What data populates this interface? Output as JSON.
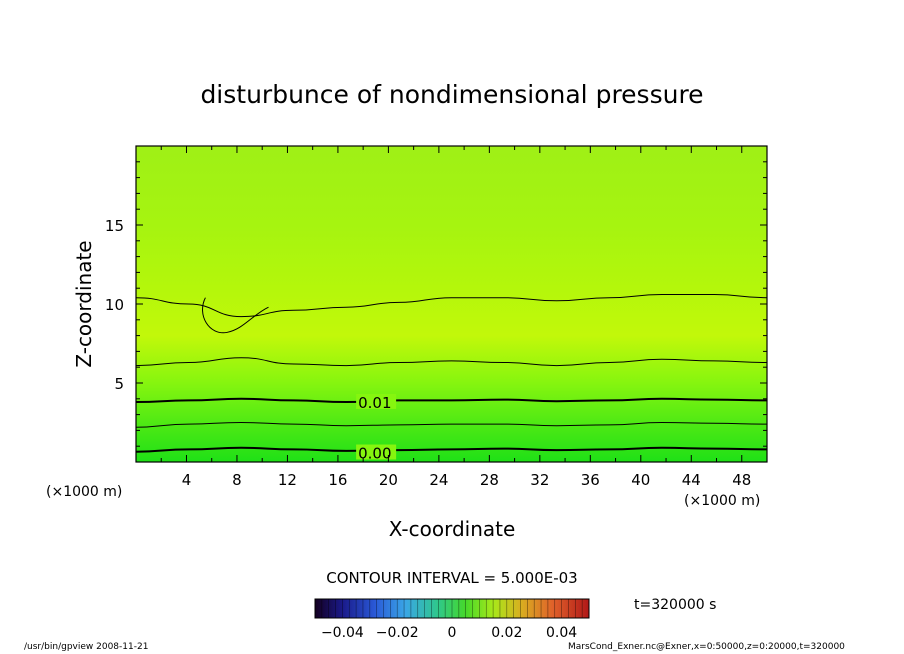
{
  "chart_data": {
    "type": "heatmap",
    "title": "disturbunce of nondimensional pressure",
    "xlabel": "X-coordinate",
    "ylabel": "Z-coordinate",
    "x_unit_left": "(×1000 m)",
    "x_unit_right": "(×1000 m)",
    "xlim": [
      0,
      50
    ],
    "ylim": [
      0,
      20
    ],
    "x_ticks": [
      4,
      8,
      12,
      16,
      20,
      24,
      28,
      32,
      36,
      40,
      44,
      48
    ],
    "y_ticks": [
      5,
      10,
      15
    ],
    "contour_interval": "CONTOUR INTERVAL = 5.000E-03",
    "contour_labels": [
      {
        "text": "0.01",
        "x": 17.6,
        "z": 3.8
      },
      {
        "text": "0.00",
        "x": 17.6,
        "z": 0.6
      }
    ],
    "contours": [
      {
        "level": 0.0,
        "z": [
          0.65,
          0.8,
          0.9,
          0.8,
          0.7,
          0.75,
          0.8,
          0.85,
          0.75,
          0.8,
          0.9,
          0.85,
          0.8
        ],
        "bold": true
      },
      {
        "level": 0.005,
        "z": [
          2.2,
          2.4,
          2.5,
          2.4,
          2.3,
          2.35,
          2.4,
          2.4,
          2.3,
          2.35,
          2.5,
          2.45,
          2.4
        ],
        "bold": false
      },
      {
        "level": 0.01,
        "z": [
          3.8,
          3.9,
          4.0,
          3.9,
          3.8,
          3.9,
          3.9,
          3.95,
          3.85,
          3.9,
          4.0,
          3.95,
          3.9
        ],
        "bold": true
      },
      {
        "level": 0.015,
        "z": [
          6.1,
          6.3,
          6.6,
          6.2,
          6.1,
          6.3,
          6.4,
          6.3,
          6.1,
          6.3,
          6.5,
          6.4,
          6.3
        ],
        "bold": false
      },
      {
        "level": 0.02,
        "z": [
          10.4,
          10.0,
          9.2,
          9.6,
          9.8,
          10.1,
          10.4,
          10.4,
          10.2,
          10.4,
          10.6,
          10.6,
          10.4
        ],
        "bold": false
      }
    ],
    "colorbar": {
      "ticks": [
        "−0.04",
        "−0.02",
        "0",
        "0.02",
        "0.04"
      ],
      "range": [
        -0.05,
        0.05
      ]
    },
    "time_label": "t=320000 s"
  },
  "footer": {
    "left": "/usr/bin/gpview   2008-11-21",
    "right": "MarsCond_Exner.nc@Exner,x=0:50000,z=0:20000,t=320000"
  }
}
